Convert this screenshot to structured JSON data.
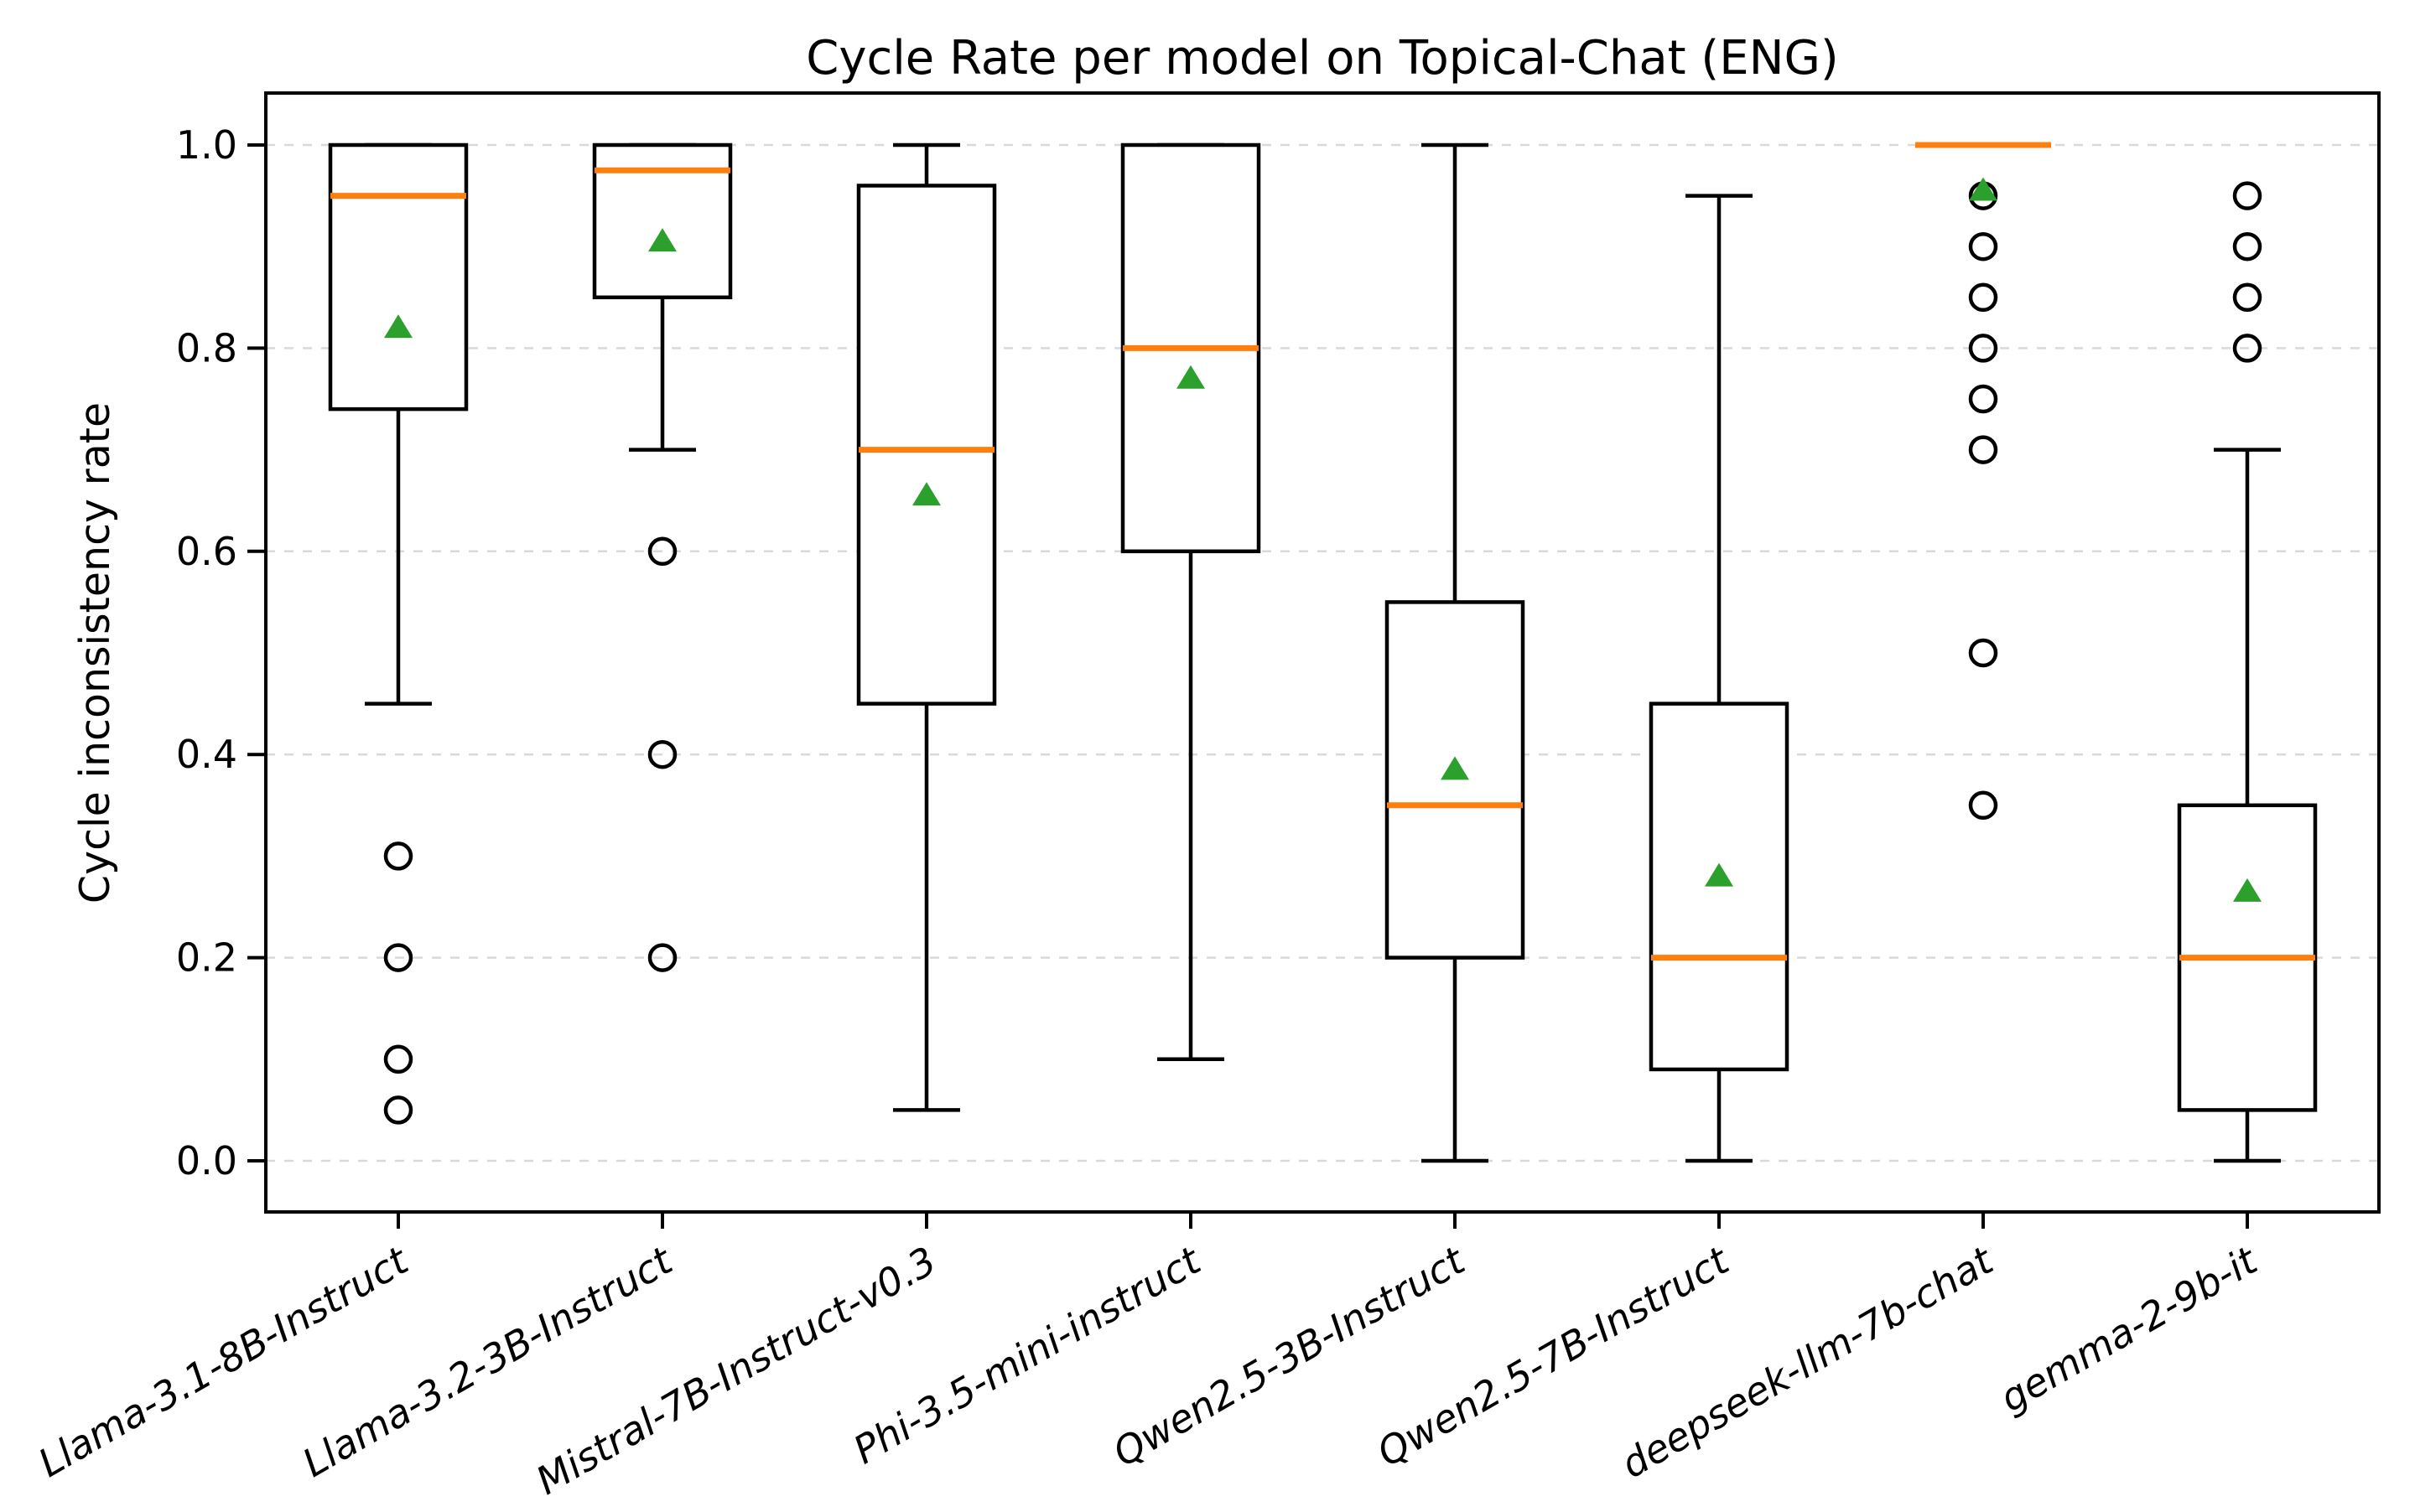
{
  "chart_data": {
    "type": "boxplot",
    "title": "Cycle Rate per model on Topical-Chat (ENG)",
    "xlabel": "",
    "ylabel": "Cycle inconsistency rate",
    "ylim": [
      -0.05,
      1.05
    ],
    "yticks": [
      0.0,
      0.2,
      0.4,
      0.6,
      0.8,
      1.0
    ],
    "ytick_labels": [
      "0.0",
      "0.2",
      "0.4",
      "0.6",
      "0.8",
      "1.0"
    ],
    "grid": {
      "axis": "y",
      "style": "dashed",
      "color": "#d9d9d9"
    },
    "legend": "none",
    "xtick_rotation_deg": 30,
    "categories": [
      "Llama-3.1-8B-Instruct",
      "Llama-3.2-3B-Instruct",
      "Mistral-7B-Instruct-v0.3",
      "Phi-3.5-mini-instruct",
      "Qwen2.5-3B-Instruct",
      "Qwen2.5-7B-Instruct",
      "deepseek-llm-7b-chat",
      "gemma-2-9b-it"
    ],
    "series": [
      {
        "model": "Llama-3.1-8B-Instruct",
        "whislo": 0.45,
        "q1": 0.74,
        "med": 0.95,
        "q3": 1.0,
        "whishi": 1.0,
        "mean": 0.82,
        "outliers": [
          0.3,
          0.2,
          0.1,
          0.05
        ]
      },
      {
        "model": "Llama-3.2-3B-Instruct",
        "whislo": 0.7,
        "q1": 0.85,
        "med": 0.975,
        "q3": 1.0,
        "whishi": 1.0,
        "mean": 0.905,
        "outliers": [
          0.6,
          0.4,
          0.2
        ]
      },
      {
        "model": "Mistral-7B-Instruct-v0.3",
        "whislo": 0.05,
        "q1": 0.45,
        "med": 0.7,
        "q3": 0.96,
        "whishi": 1.0,
        "mean": 0.655,
        "outliers": []
      },
      {
        "model": "Phi-3.5-mini-instruct",
        "whislo": 0.1,
        "q1": 0.6,
        "med": 0.8,
        "q3": 1.0,
        "whishi": 1.0,
        "mean": 0.77,
        "outliers": []
      },
      {
        "model": "Qwen2.5-3B-Instruct",
        "whislo": 0.0,
        "q1": 0.2,
        "med": 0.35,
        "q3": 0.55,
        "whishi": 1.0,
        "mean": 0.385,
        "outliers": []
      },
      {
        "model": "Qwen2.5-7B-Instruct",
        "whislo": 0.0,
        "q1": 0.09,
        "med": 0.2,
        "q3": 0.45,
        "whishi": 0.95,
        "mean": 0.28,
        "outliers": []
      },
      {
        "model": "deepseek-llm-7b-chat",
        "whislo": 1.0,
        "q1": 1.0,
        "med": 1.0,
        "q3": 1.0,
        "whishi": 1.0,
        "mean": 0.955,
        "outliers": [
          0.95,
          0.9,
          0.85,
          0.8,
          0.75,
          0.7,
          0.5,
          0.35
        ]
      },
      {
        "model": "gemma-2-9b-it",
        "whislo": 0.0,
        "q1": 0.05,
        "med": 0.2,
        "q3": 0.35,
        "whishi": 0.7,
        "mean": 0.265,
        "outliers": [
          0.95,
          0.9,
          0.85,
          0.8
        ]
      }
    ],
    "style": {
      "box_color": "#000000",
      "median_color": "#ff7f0e",
      "mean_color": "#2ca02c",
      "mean_marker": "triangle-up",
      "outlier_marker": "open-circle",
      "background": "#ffffff",
      "grid_color": "#d9d9d9"
    }
  }
}
